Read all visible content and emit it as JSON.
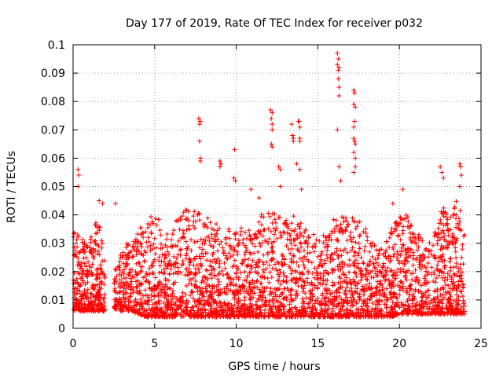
{
  "chart_data": {
    "type": "scatter",
    "title": "Day 177 of 2019, Rate Of TEC Index for receiver p032",
    "xlabel": "GPS time / hours",
    "ylabel": "ROTI / TECUs",
    "xlim": [
      0,
      25
    ],
    "ylim": [
      0,
      0.1
    ],
    "xticks": [
      "0",
      "5",
      "10",
      "15",
      "20",
      "25"
    ],
    "yticks": [
      "0",
      "0.01",
      "0.02",
      "0.03",
      "0.04",
      "0.05",
      "0.06",
      "0.07",
      "0.08",
      "0.09",
      "0.1"
    ],
    "grid": true,
    "marker": "plus",
    "color": "#ff0000",
    "band": {
      "x": [
        0,
        1,
        1.5,
        2,
        2.5,
        3,
        3.5,
        4,
        4.5,
        5,
        5.5,
        6,
        6.5,
        7,
        7.5,
        8,
        8.5,
        9,
        9.5,
        10,
        10.5,
        11,
        11.5,
        12,
        12.5,
        13,
        13.5,
        14,
        14.5,
        15,
        15.5,
        16,
        16.5,
        17,
        17.5,
        18,
        18.5,
        19,
        19.5,
        20,
        20.5,
        21,
        21.5,
        22,
        22.5,
        23,
        23.5,
        24
      ],
      "y_low": [
        0.006,
        0.006,
        0.006,
        0.006,
        0.007,
        0.006,
        0.006,
        0.005,
        0.004,
        0.004,
        0.004,
        0.004,
        0.004,
        0.004,
        0.004,
        0.004,
        0.004,
        0.004,
        0.004,
        0.004,
        0.004,
        0.004,
        0.004,
        0.004,
        0.004,
        0.004,
        0.004,
        0.004,
        0.004,
        0.004,
        0.004,
        0.004,
        0.004,
        0.004,
        0.004,
        0.004,
        0.004,
        0.004,
        0.004,
        0.005,
        0.005,
        0.005,
        0.005,
        0.005,
        0.005,
        0.005,
        0.005,
        0.005
      ],
      "y_high": [
        0.035,
        0.03,
        0.04,
        0.025,
        0.02,
        0.03,
        0.03,
        0.035,
        0.04,
        0.04,
        0.038,
        0.035,
        0.04,
        0.045,
        0.042,
        0.04,
        0.038,
        0.036,
        0.035,
        0.035,
        0.036,
        0.035,
        0.04,
        0.042,
        0.04,
        0.038,
        0.04,
        0.038,
        0.035,
        0.032,
        0.035,
        0.04,
        0.04,
        0.04,
        0.038,
        0.035,
        0.03,
        0.028,
        0.035,
        0.04,
        0.04,
        0.035,
        0.03,
        0.032,
        0.045,
        0.04,
        0.045,
        0.04
      ]
    },
    "outliers": [
      [
        0.3,
        0.056
      ],
      [
        0.35,
        0.054
      ],
      [
        0.3,
        0.05
      ],
      [
        1.6,
        0.045
      ],
      [
        1.8,
        0.044
      ],
      [
        2.6,
        0.044
      ],
      [
        7.7,
        0.074
      ],
      [
        7.8,
        0.073
      ],
      [
        7.75,
        0.072
      ],
      [
        7.75,
        0.066
      ],
      [
        7.8,
        0.06
      ],
      [
        7.8,
        0.059
      ],
      [
        9.0,
        0.059
      ],
      [
        9.05,
        0.058
      ],
      [
        9.0,
        0.057
      ],
      [
        9.9,
        0.063
      ],
      [
        9.85,
        0.053
      ],
      [
        9.95,
        0.052
      ],
      [
        10.9,
        0.049
      ],
      [
        11.4,
        0.046
      ],
      [
        12.1,
        0.077
      ],
      [
        12.2,
        0.076
      ],
      [
        12.15,
        0.074
      ],
      [
        12.2,
        0.072
      ],
      [
        12.2,
        0.07
      ],
      [
        12.15,
        0.065
      ],
      [
        12.2,
        0.064
      ],
      [
        12.6,
        0.057
      ],
      [
        12.7,
        0.056
      ],
      [
        12.7,
        0.05
      ],
      [
        13.4,
        0.072
      ],
      [
        13.45,
        0.068
      ],
      [
        13.5,
        0.067
      ],
      [
        13.5,
        0.066
      ],
      [
        13.8,
        0.073
      ],
      [
        13.85,
        0.073
      ],
      [
        13.9,
        0.071
      ],
      [
        13.9,
        0.067
      ],
      [
        13.9,
        0.066
      ],
      [
        13.7,
        0.058
      ],
      [
        13.9,
        0.056
      ],
      [
        14.0,
        0.049
      ],
      [
        16.2,
        0.097
      ],
      [
        16.25,
        0.095
      ],
      [
        16.2,
        0.093
      ],
      [
        16.3,
        0.092
      ],
      [
        16.25,
        0.091
      ],
      [
        16.25,
        0.088
      ],
      [
        16.3,
        0.085
      ],
      [
        16.3,
        0.082
      ],
      [
        16.2,
        0.07
      ],
      [
        16.3,
        0.057
      ],
      [
        16.4,
        0.052
      ],
      [
        17.2,
        0.084
      ],
      [
        17.25,
        0.083
      ],
      [
        17.2,
        0.079
      ],
      [
        17.3,
        0.078
      ],
      [
        17.25,
        0.073
      ],
      [
        17.2,
        0.071
      ],
      [
        17.2,
        0.067
      ],
      [
        17.25,
        0.066
      ],
      [
        17.3,
        0.065
      ],
      [
        17.2,
        0.062
      ],
      [
        17.3,
        0.06
      ],
      [
        17.3,
        0.057
      ],
      [
        17.2,
        0.055
      ],
      [
        19.6,
        0.044
      ],
      [
        20.2,
        0.049
      ],
      [
        22.5,
        0.057
      ],
      [
        22.6,
        0.055
      ],
      [
        22.7,
        0.053
      ],
      [
        23.7,
        0.058
      ],
      [
        23.75,
        0.057
      ],
      [
        23.8,
        0.054
      ],
      [
        23.7,
        0.05
      ]
    ]
  }
}
